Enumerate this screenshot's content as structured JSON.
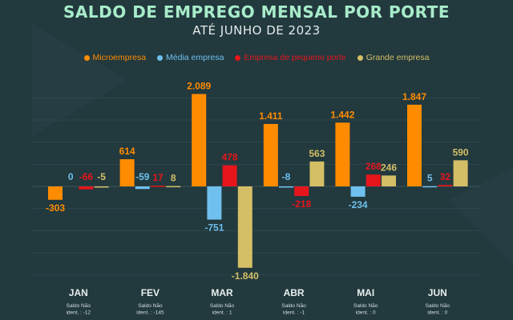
{
  "title": "SALDO DE EMPREGO MENSAL  POR PORTE",
  "subtitle": "ATÉ JUNHO DE 2023",
  "colors": {
    "background": "#22393e",
    "grid": "#2f474c",
    "title": "#a8ecca",
    "month_label": "#e8efee",
    "note": "#d6dedc"
  },
  "chart_data": {
    "type": "bar",
    "categories": [
      "JAN",
      "FEV",
      "MAR",
      "ABR",
      "MAI",
      "JUN"
    ],
    "series": [
      {
        "name": "Microempresa",
        "color": "#ff8c00",
        "values": [
          -303,
          614,
          2089,
          1411,
          1442,
          1847
        ],
        "labels": [
          "-303",
          "614",
          "2.089",
          "1.411",
          "1.442",
          "1.847"
        ]
      },
      {
        "name": "Média empresa",
        "color": "#6fc0ee",
        "values": [
          0,
          -59,
          -751,
          -8,
          -234,
          5
        ],
        "labels": [
          "0",
          "-59",
          "-751",
          "-8",
          "-234",
          "5"
        ]
      },
      {
        "name": "Empresa de pequeno porte",
        "color": "#e6161c",
        "values": [
          -66,
          17,
          478,
          -218,
          268,
          32
        ],
        "labels": [
          "-66",
          "17",
          "478",
          "-218",
          "268",
          "32"
        ]
      },
      {
        "name": "Grande empresa",
        "color": "#d4bf66",
        "values": [
          -5,
          8,
          -1840,
          563,
          246,
          590
        ],
        "labels": [
          "-5",
          "8",
          "-1.840",
          "563",
          "246",
          "590"
        ]
      }
    ],
    "notes": [
      [
        "Saldo Não",
        "ident. : -12"
      ],
      [
        "Saldo Não",
        "ident. : -145"
      ],
      [
        "Saldo Não",
        "ident. : 1"
      ],
      [
        "Saldo Não",
        "ident. : -1"
      ],
      [
        "Saldo Não",
        "ident. : 0"
      ],
      [
        "Saldo Não",
        "ident. : 0"
      ]
    ],
    "ylim": [
      -2000,
      2200
    ],
    "grid": true,
    "legend_position": "top-center"
  }
}
